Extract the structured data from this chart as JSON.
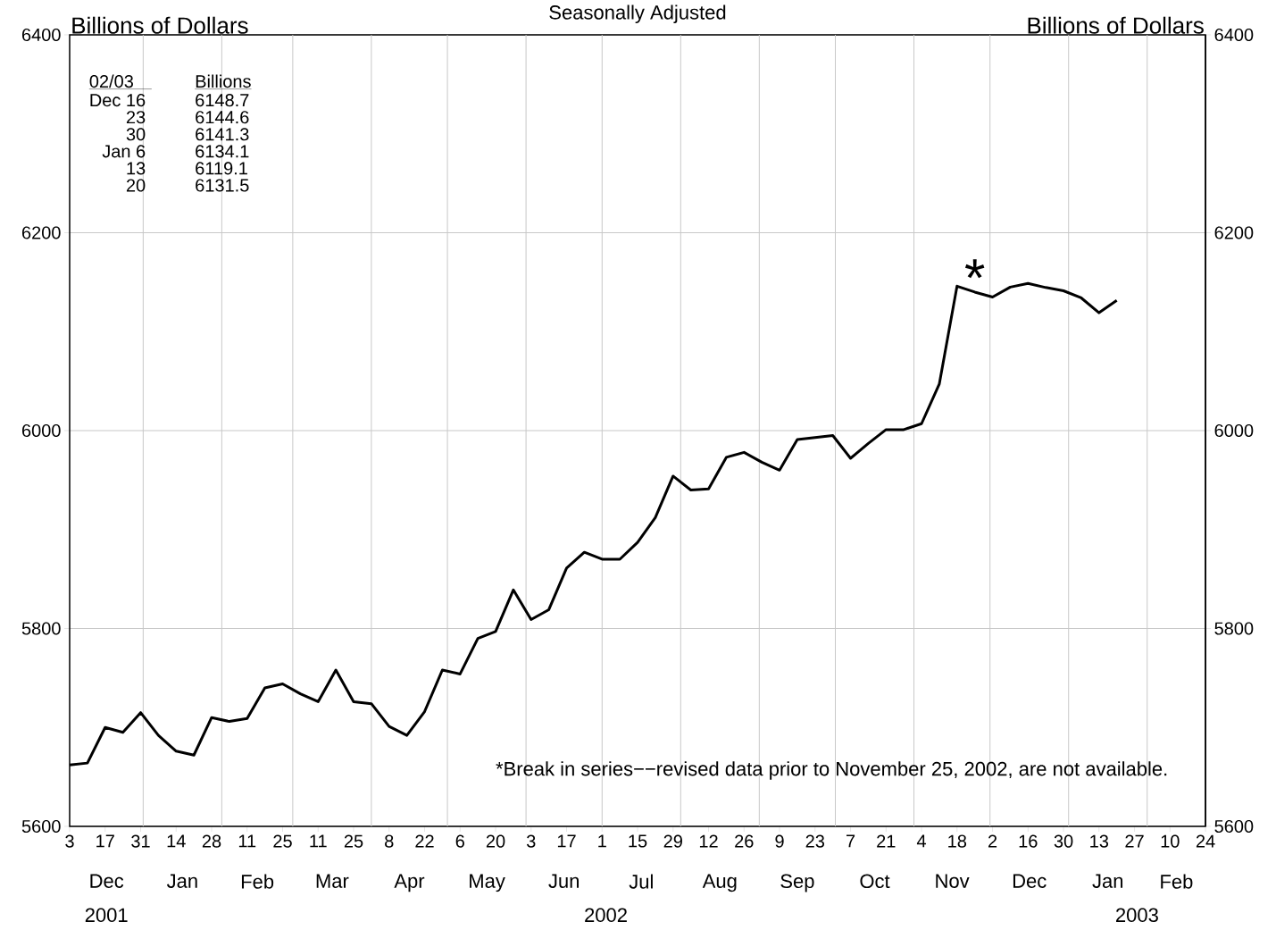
{
  "chart_data": {
    "type": "line",
    "title": "Seasonally Adjusted",
    "ylabel": "Billions of Dollars",
    "y2label": "Billions of Dollars",
    "x": [
      "2001-12-03",
      "2001-12-10",
      "2001-12-17",
      "2001-12-24",
      "2001-12-31",
      "2002-01-07",
      "2002-01-14",
      "2002-01-21",
      "2002-01-28",
      "2002-02-04",
      "2002-02-11",
      "2002-02-18",
      "2002-02-25",
      "2002-03-04",
      "2002-03-11",
      "2002-03-18",
      "2002-03-25",
      "2002-04-01",
      "2002-04-08",
      "2002-04-15",
      "2002-04-22",
      "2002-04-29",
      "2002-05-06",
      "2002-05-13",
      "2002-05-20",
      "2002-05-27",
      "2002-06-03",
      "2002-06-10",
      "2002-06-17",
      "2002-06-24",
      "2002-07-01",
      "2002-07-08",
      "2002-07-15",
      "2002-07-22",
      "2002-07-29",
      "2002-08-05",
      "2002-08-12",
      "2002-08-19",
      "2002-08-26",
      "2002-09-02",
      "2002-09-09",
      "2002-09-16",
      "2002-09-23",
      "2002-09-30",
      "2002-10-07",
      "2002-10-14",
      "2002-10-21",
      "2002-10-28",
      "2002-11-04",
      "2002-11-11",
      "2002-11-18",
      "2002-11-25",
      "2002-12-02",
      "2002-12-09",
      "2002-12-16",
      "2002-12-23",
      "2002-12-30",
      "2003-01-06",
      "2003-01-13",
      "2003-01-20"
    ],
    "series": [
      {
        "color": "#000000",
        "values": [
          5662,
          5664,
          5700,
          5695,
          5715,
          5692,
          5676,
          5672,
          5710,
          5706,
          5709,
          5740,
          5744,
          5734,
          5726,
          5758,
          5726,
          5724,
          5701,
          5692,
          5716,
          5758,
          5754,
          5790,
          5797,
          5839,
          5809,
          5819,
          5861,
          5877,
          5870,
          5870,
          5887,
          5912,
          5954,
          5940,
          5941,
          5973,
          5978,
          5968,
          5960,
          5991,
          5993,
          5995,
          5972,
          5987,
          6001,
          6001,
          6007,
          6047,
          6146,
          6140,
          6135,
          6145,
          6148.7,
          6144.6,
          6141.3,
          6134.1,
          6119.1,
          6131.5
        ]
      }
    ],
    "xlim": [
      "2001-12-03",
      "2003-02-24"
    ],
    "xticks": [
      {
        "value": "2001-12-03",
        "label": "3"
      },
      {
        "value": "2001-12-17",
        "label": "17"
      },
      {
        "value": "2001-12-31",
        "label": "31"
      },
      {
        "value": "2002-01-14",
        "label": "14"
      },
      {
        "value": "2002-01-28",
        "label": "28"
      },
      {
        "value": "2002-02-11",
        "label": "11"
      },
      {
        "value": "2002-02-25",
        "label": "25"
      },
      {
        "value": "2002-03-11",
        "label": "11"
      },
      {
        "value": "2002-03-25",
        "label": "25"
      },
      {
        "value": "2002-04-08",
        "label": "8"
      },
      {
        "value": "2002-04-22",
        "label": "22"
      },
      {
        "value": "2002-05-06",
        "label": "6"
      },
      {
        "value": "2002-05-20",
        "label": "20"
      },
      {
        "value": "2002-06-03",
        "label": "3"
      },
      {
        "value": "2002-06-17",
        "label": "17"
      },
      {
        "value": "2002-07-01",
        "label": "1"
      },
      {
        "value": "2002-07-15",
        "label": "15"
      },
      {
        "value": "2002-07-29",
        "label": "29"
      },
      {
        "value": "2002-08-12",
        "label": "12"
      },
      {
        "value": "2002-08-26",
        "label": "26"
      },
      {
        "value": "2002-09-09",
        "label": "9"
      },
      {
        "value": "2002-09-23",
        "label": "23"
      },
      {
        "value": "2002-10-07",
        "label": "7"
      },
      {
        "value": "2002-10-21",
        "label": "21"
      },
      {
        "value": "2002-11-04",
        "label": "4"
      },
      {
        "value": "2002-11-18",
        "label": "18"
      },
      {
        "value": "2002-12-02",
        "label": "2"
      },
      {
        "value": "2002-12-16",
        "label": "16"
      },
      {
        "value": "2002-12-30",
        "label": "30"
      },
      {
        "value": "2003-01-13",
        "label": "13"
      },
      {
        "value": "2003-01-27",
        "label": "27"
      },
      {
        "value": "2003-02-10",
        "label": "10"
      },
      {
        "value": "2003-02-24",
        "label": "24"
      }
    ],
    "ylim": [
      5600,
      6400
    ],
    "yticks": [
      5600,
      5800,
      6000,
      6200,
      6400
    ],
    "y2lim": [
      5600,
      6400
    ],
    "y2ticks": [
      5600,
      5800,
      6000,
      6200,
      6400
    ],
    "grid": "y",
    "ref_lines": [
      {
        "axis": "x",
        "value": "2002-01-01",
        "color": "#c8c8c8"
      },
      {
        "axis": "x",
        "value": "2002-02-01",
        "color": "#c8c8c8"
      },
      {
        "axis": "x",
        "value": "2002-03-01",
        "color": "#c8c8c8"
      },
      {
        "axis": "x",
        "value": "2002-04-01",
        "color": "#c8c8c8"
      },
      {
        "axis": "x",
        "value": "2002-05-01",
        "color": "#c8c8c8"
      },
      {
        "axis": "x",
        "value": "2002-06-01",
        "color": "#c8c8c8"
      },
      {
        "axis": "x",
        "value": "2002-07-01",
        "color": "#c8c8c8"
      },
      {
        "axis": "x",
        "value": "2002-08-01",
        "color": "#c8c8c8"
      },
      {
        "axis": "x",
        "value": "2002-09-01",
        "color": "#c8c8c8"
      },
      {
        "axis": "x",
        "value": "2002-10-01",
        "color": "#c8c8c8"
      },
      {
        "axis": "x",
        "value": "2002-11-01",
        "color": "#c8c8c8"
      },
      {
        "axis": "x",
        "value": "2002-12-01",
        "color": "#c8c8c8"
      },
      {
        "axis": "x",
        "value": "2003-01-01",
        "color": "#c8c8c8"
      },
      {
        "axis": "x",
        "value": "2003-02-01",
        "color": "#c8c8c8"
      }
    ],
    "annotations": [
      "*Break in series−−revised data prior to November 25, 2002, are not available.",
      {
        "text": "*",
        "x": "2002-11-25",
        "y": 6140
      },
      "02/03",
      "Billions",
      "Dec 16",
      "6148.7",
      "23",
      "6144.6",
      "30",
      "6141.3",
      "Jan 6",
      "6134.1",
      "13",
      "6119.1",
      "20",
      "6131.5",
      "Dec",
      "Jan",
      "Feb",
      "Mar",
      "Apr",
      "May",
      "Jun",
      "Jul",
      "Aug",
      "Sep",
      "Oct",
      "Nov",
      "Dec",
      "Jan",
      "Feb",
      "2001",
      "2002",
      "2003"
    ]
  }
}
